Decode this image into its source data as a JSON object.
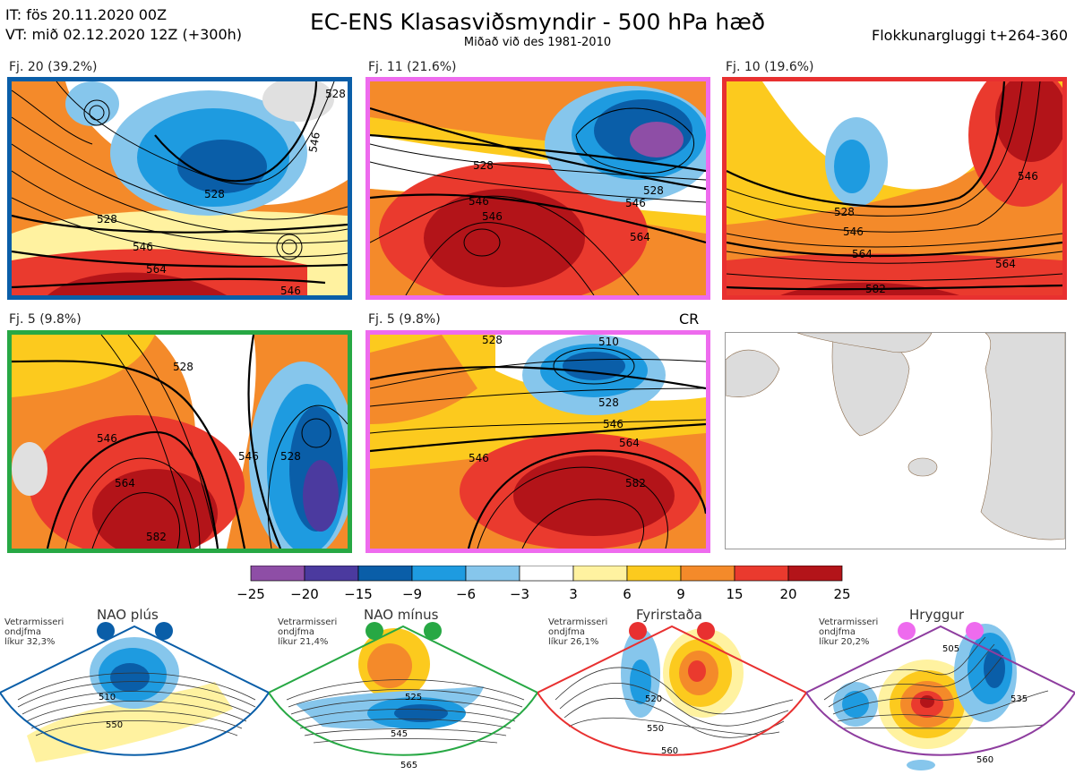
{
  "header": {
    "it_line": "IT: fös 20.11.2020 00Z",
    "vt_line": "VT: mið 02.12.2020 12Z  (+300h)",
    "title": "EC-ENS Klasasviðsmyndir - 500 hPa hæð",
    "subtitle": "Miðað við des 1981-2010",
    "window": "Flokkunargluggi t+264-360"
  },
  "panels": [
    {
      "label": "Fj. 20 (39.2%)",
      "border": "#0a5ea8",
      "contours": [
        "528",
        "546",
        "564",
        "546",
        "546",
        "528",
        "528"
      ]
    },
    {
      "label": "Fj. 11 (21.6%)",
      "border": "#ee6bee",
      "contours": [
        "528",
        "546",
        "546",
        "564",
        "528",
        "546"
      ]
    },
    {
      "label": "Fj. 10 (19.6%)",
      "border": "#e83030",
      "contours": [
        "528",
        "546",
        "564",
        "582",
        "564",
        "546"
      ]
    },
    {
      "label": "Fj. 5 (9.8%)",
      "border": "#27a844",
      "contours": [
        "528",
        "546",
        "564",
        "582",
        "546",
        "528"
      ]
    },
    {
      "label": "Fj. 5 (9.8%)",
      "border": "#ee6bee",
      "contours": [
        "528",
        "546",
        "564",
        "582",
        "546",
        "528",
        "510"
      ]
    }
  ],
  "cr_label": "CR",
  "colorbar": {
    "ticks": [
      "−25",
      "−20",
      "−15",
      "−9",
      "−6",
      "−3",
      "3",
      "6",
      "9",
      "15",
      "20",
      "25"
    ],
    "colors": [
      "#8e4ea6",
      "#4b3a9f",
      "#0a5ea8",
      "#1e9be0",
      "#86c6ec",
      "#ffffff",
      "#fff2a0",
      "#fcca1e",
      "#f48a2a",
      "#ea3a2e",
      "#b31419"
    ]
  },
  "regimes": [
    {
      "title": "NAO plús",
      "desc1": "Vetrarmisseri",
      "desc2": "ondjfma",
      "desc3": "líkur 32,3%",
      "color": "#0a5ea8",
      "contours": [
        "510",
        "550"
      ]
    },
    {
      "title": "NAO mínus",
      "desc1": "Vetrarmisseri",
      "desc2": "ondjfma",
      "desc3": "líkur 21,4%",
      "color": "#27a844",
      "contours": [
        "525",
        "545",
        "565"
      ]
    },
    {
      "title": "Fyrirstaða",
      "desc1": "Vetrarmisseri",
      "desc2": "ondjfma",
      "desc3": "líkur 26,1%",
      "color": "#e83030",
      "contours": [
        "520",
        "550",
        "560"
      ]
    },
    {
      "title": "Hryggur",
      "desc1": "Vetrarmisseri",
      "desc2": "ondjfma",
      "desc3": "líkur 20,2%",
      "color": "#ee6bee",
      "contours": [
        "505",
        "535",
        "560"
      ]
    }
  ]
}
